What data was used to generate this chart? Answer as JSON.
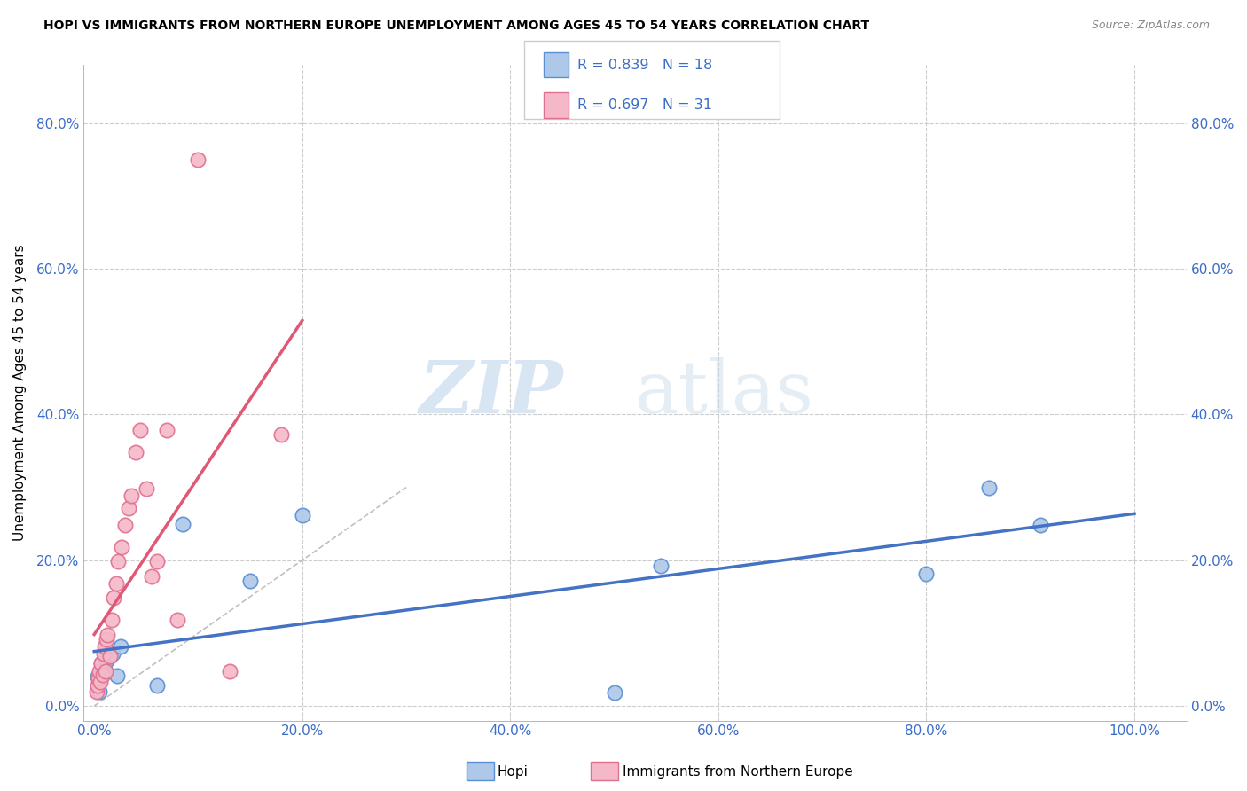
{
  "title": "HOPI VS IMMIGRANTS FROM NORTHERN EUROPE UNEMPLOYMENT AMONG AGES 45 TO 54 YEARS CORRELATION CHART",
  "source": "Source: ZipAtlas.com",
  "ylabel": "Unemployment Among Ages 45 to 54 years",
  "watermark_zip": "ZIP",
  "watermark_atlas": "atlas",
  "xlim": [
    -0.01,
    1.05
  ],
  "ylim": [
    -0.02,
    0.88
  ],
  "xticks": [
    0.0,
    0.2,
    0.4,
    0.6,
    0.8,
    1.0
  ],
  "yticks": [
    0.0,
    0.2,
    0.4,
    0.6,
    0.8
  ],
  "color_hopi_fill": "#adc8e8",
  "color_hopi_edge": "#5b8fd4",
  "color_hopi_line": "#4472c4",
  "color_imm_fill": "#f5b8c8",
  "color_imm_edge": "#e07090",
  "color_imm_line": "#e05878",
  "hopi_x": [
    0.003,
    0.005,
    0.007,
    0.01,
    0.012,
    0.015,
    0.018,
    0.022,
    0.025,
    0.06,
    0.085,
    0.15,
    0.2,
    0.5,
    0.545,
    0.8,
    0.86,
    0.91
  ],
  "hopi_y": [
    0.04,
    0.02,
    0.058,
    0.05,
    0.062,
    0.068,
    0.072,
    0.042,
    0.082,
    0.028,
    0.25,
    0.172,
    0.262,
    0.018,
    0.192,
    0.182,
    0.3,
    0.248
  ],
  "imm_x": [
    0.002,
    0.003,
    0.004,
    0.005,
    0.006,
    0.007,
    0.008,
    0.009,
    0.01,
    0.011,
    0.012,
    0.013,
    0.015,
    0.017,
    0.019,
    0.021,
    0.023,
    0.026,
    0.03,
    0.033,
    0.036,
    0.04,
    0.044,
    0.05,
    0.055,
    0.06,
    0.07,
    0.08,
    0.1,
    0.13,
    0.18
  ],
  "imm_y": [
    0.02,
    0.028,
    0.038,
    0.048,
    0.033,
    0.058,
    0.043,
    0.072,
    0.082,
    0.048,
    0.092,
    0.098,
    0.068,
    0.118,
    0.148,
    0.168,
    0.198,
    0.218,
    0.248,
    0.272,
    0.288,
    0.348,
    0.378,
    0.298,
    0.178,
    0.198,
    0.378,
    0.118,
    0.75,
    0.048,
    0.372
  ]
}
